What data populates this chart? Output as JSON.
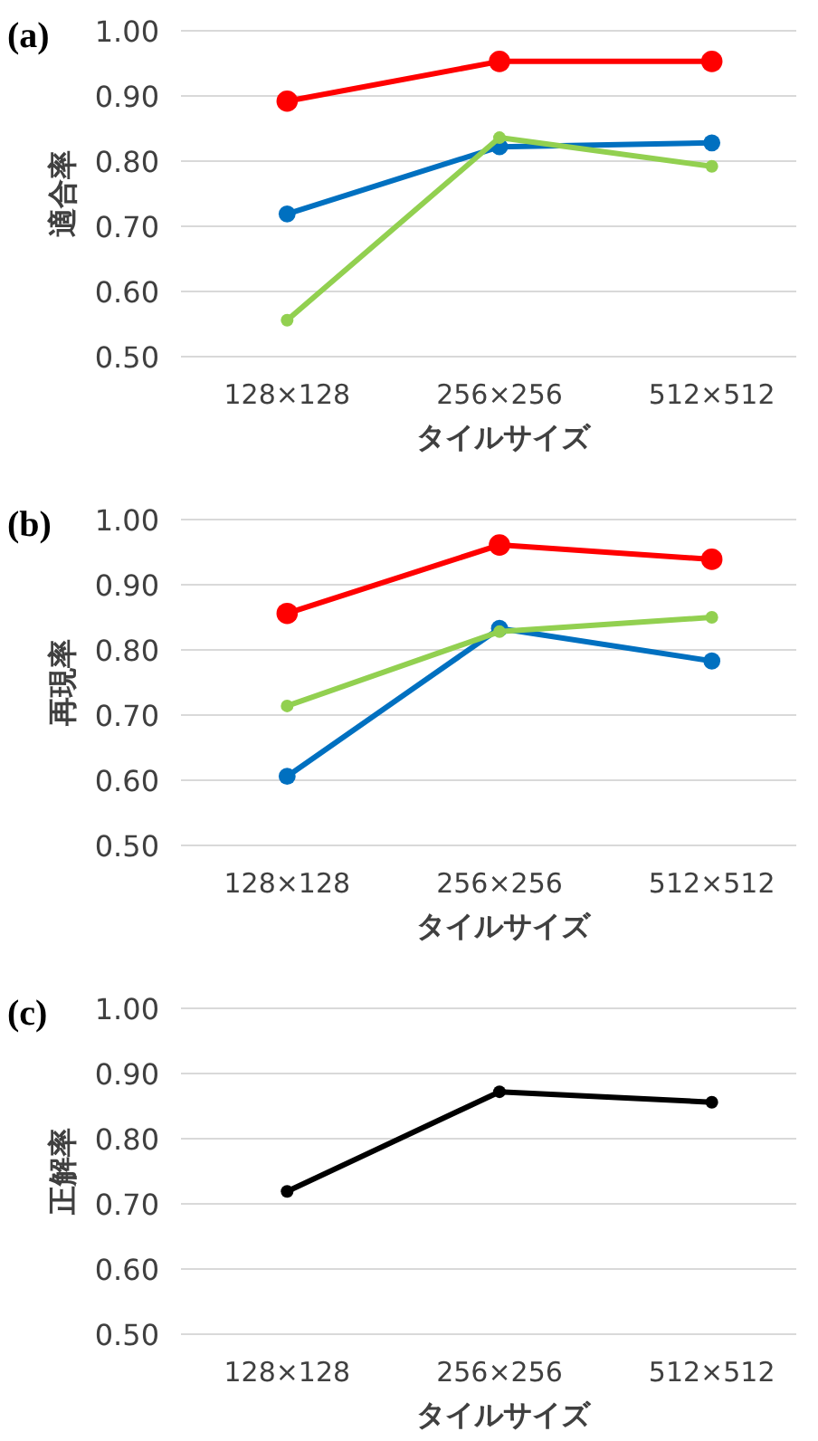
{
  "chart_data": [
    {
      "type": "line",
      "title": "(a)",
      "xlabel": "タイルサイズ",
      "ylabel": "適合率",
      "categories": [
        "128×128",
        "256×256",
        "512×512"
      ],
      "ylim": [
        0.5,
        1.0
      ],
      "yticks": [
        {
          "value": 0.5,
          "label": "0.50"
        },
        {
          "value": 0.6,
          "label": "0.60"
        },
        {
          "value": 0.7,
          "label": "0.70"
        },
        {
          "value": 0.8,
          "label": "0.80"
        },
        {
          "value": 0.9,
          "label": "0.90"
        },
        {
          "value": 1.0,
          "label": "1.00"
        }
      ],
      "grid": "y",
      "marker": "circle",
      "series": [
        {
          "color": "#ff0000",
          "values": [
            0.892,
            0.953,
            0.953
          ]
        },
        {
          "color": "#0070c0",
          "values": [
            0.719,
            0.822,
            0.828
          ]
        },
        {
          "color": "#92d050",
          "values": [
            0.556,
            0.836,
            0.792
          ]
        }
      ]
    },
    {
      "type": "line",
      "title": "(b)",
      "xlabel": "タイルサイズ",
      "ylabel": "再現率",
      "categories": [
        "128×128",
        "256×256",
        "512×512"
      ],
      "ylim": [
        0.5,
        1.0
      ],
      "yticks": [
        {
          "value": 0.5,
          "label": "0.50"
        },
        {
          "value": 0.6,
          "label": "0.60"
        },
        {
          "value": 0.7,
          "label": "0.70"
        },
        {
          "value": 0.8,
          "label": "0.80"
        },
        {
          "value": 0.9,
          "label": "0.90"
        },
        {
          "value": 1.0,
          "label": "1.00"
        }
      ],
      "grid": "y",
      "marker": "circle",
      "series": [
        {
          "color": "#ff0000",
          "values": [
            0.856,
            0.961,
            0.939
          ]
        },
        {
          "color": "#0070c0",
          "values": [
            0.606,
            0.833,
            0.783
          ]
        },
        {
          "color": "#92d050",
          "values": [
            0.714,
            0.828,
            0.85
          ]
        }
      ]
    },
    {
      "type": "line",
      "title": "(c)",
      "xlabel": "タイルサイズ",
      "ylabel": "正解率",
      "categories": [
        "128×128",
        "256×256",
        "512×512"
      ],
      "ylim": [
        0.5,
        1.0
      ],
      "yticks": [
        {
          "value": 0.5,
          "label": "0.50"
        },
        {
          "value": 0.6,
          "label": "0.60"
        },
        {
          "value": 0.7,
          "label": "0.70"
        },
        {
          "value": 0.8,
          "label": "0.80"
        },
        {
          "value": 0.9,
          "label": "0.90"
        },
        {
          "value": 1.0,
          "label": "1.00"
        }
      ],
      "grid": "y",
      "marker": "circle",
      "series": [
        {
          "color": "#000000",
          "values": [
            0.719,
            0.872,
            0.856
          ]
        }
      ]
    }
  ]
}
